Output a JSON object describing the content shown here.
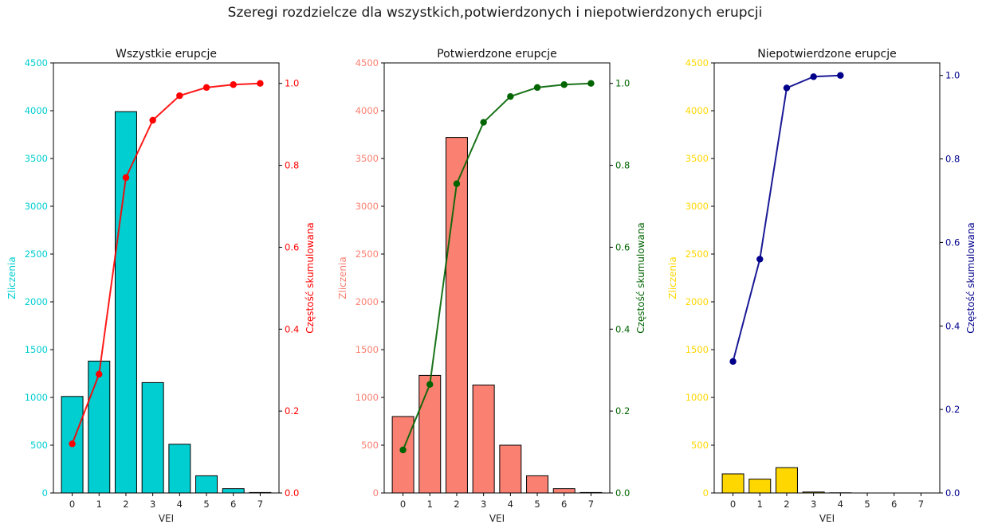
{
  "suptitle": "Szeregi rozdzielcze dla wszystkich,potwierdzonych i niepotwierdzonych erupcji",
  "chart_data": [
    {
      "type": "bar",
      "title": "Wszystkie erupcje",
      "xlabel": "VEI",
      "ylabel": "Zliczenia",
      "y2label": "Częstość skumulowana",
      "categories": [
        "0",
        "1",
        "2",
        "3",
        "4",
        "5",
        "6",
        "7"
      ],
      "values": [
        1010,
        1380,
        3990,
        1155,
        510,
        180,
        45,
        5
      ],
      "cumulative": [
        0.12,
        0.29,
        0.77,
        0.91,
        0.97,
        0.99,
        0.997,
        1.0
      ],
      "ylim": [
        0,
        4500
      ],
      "y2lim": [
        0,
        1.05
      ],
      "yticks": [
        0,
        500,
        1000,
        1500,
        2000,
        2500,
        3000,
        3500,
        4000,
        4500
      ],
      "y2ticks": [
        0.0,
        0.2,
        0.4,
        0.6,
        0.8,
        1.0
      ],
      "bar_color": "#00ced1",
      "line_color": "#ff0000",
      "y_axis_color": "#00ced1",
      "y2_axis_color": "#ff0000"
    },
    {
      "type": "bar",
      "title": "Potwierdzone erupcje",
      "xlabel": "VEI",
      "ylabel": "Zliczenia",
      "y2label": "Częstość skumulowana",
      "categories": [
        "0",
        "1",
        "2",
        "3",
        "4",
        "5",
        "6",
        "7"
      ],
      "values": [
        800,
        1230,
        3720,
        1130,
        500,
        180,
        45,
        5
      ],
      "cumulative": [
        0.105,
        0.265,
        0.755,
        0.905,
        0.968,
        0.99,
        0.997,
        1.0
      ],
      "ylim": [
        0,
        4500
      ],
      "y2lim": [
        0,
        1.05
      ],
      "yticks": [
        0,
        500,
        1000,
        1500,
        2000,
        2500,
        3000,
        3500,
        4000,
        4500
      ],
      "y2ticks": [
        0.0,
        0.2,
        0.4,
        0.6,
        0.8,
        1.0
      ],
      "bar_color": "#fa8072",
      "line_color": "#006400",
      "y_axis_color": "#fa8072",
      "y2_axis_color": "#006400"
    },
    {
      "type": "bar",
      "title": "Niepotwierdzone erupcje",
      "xlabel": "VEI",
      "ylabel": "Zliczenia",
      "y2label": "Częstość skumulowana",
      "categories": [
        "0",
        "1",
        "2",
        "3",
        "4",
        "5",
        "6",
        "7"
      ],
      "values": [
        200,
        145,
        265,
        10,
        2,
        0,
        0,
        0
      ],
      "cumulative": [
        0.315,
        0.56,
        0.97,
        0.997,
        1.0,
        null,
        null,
        null
      ],
      "ylim": [
        0,
        4500
      ],
      "y2lim": [
        0,
        1.03
      ],
      "yticks": [
        0,
        500,
        1000,
        1500,
        2000,
        2500,
        3000,
        3500,
        4000,
        4500
      ],
      "y2ticks": [
        0.0,
        0.2,
        0.4,
        0.6,
        0.8,
        1.0
      ],
      "bar_color": "#ffd700",
      "line_color": "#00008b",
      "y_axis_color": "#ffd700",
      "y2_axis_color": "#00008b"
    }
  ]
}
